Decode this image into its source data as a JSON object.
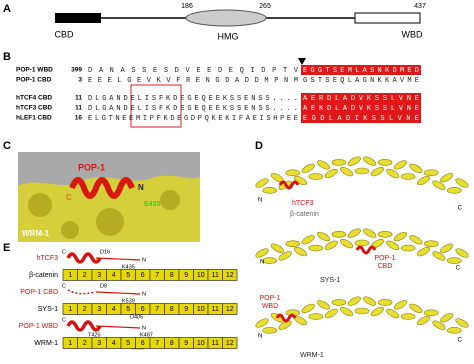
{
  "panel_a": {
    "label": "A",
    "positions": [
      186,
      265,
      437
    ],
    "domains": [
      "CBD",
      "HMG",
      "WBD"
    ]
  },
  "panel_b": {
    "label": "B",
    "rows": [
      {
        "name": "POP-1 WBD",
        "start": 399,
        "sequence": "DANASSESDVEEDEQIDPTV",
        "boxed": "EGGTSEMLASNKDMED",
        "highlight": true
      },
      {
        "name": "POP-1 CBD",
        "start": 3,
        "sequence": "EEELGEVKVFRENGDADDMPNM",
        "boxed": "GSTSEQLAGNKKAVME",
        "highlight": false
      },
      {
        "name": "hTCF4 CBD",
        "start": 11,
        "sequence": "DLGANDELISFKDEGEQEEKSSENSS....",
        "boxed": "AERDLADVKSSLVNE",
        "highlight": true
      },
      {
        "name": "hTCF3 CBD",
        "start": 11,
        "sequence": "DLGANDELISFKDEGEQEEKSSENSS....",
        "boxed": "AEKDLADVKSSLVNE",
        "highlight": true
      },
      {
        "name": "hLEF1 CBD",
        "start": 16,
        "sequence": "ELGTNEEMIPFKDEGDPQKEKIFAEISHPEE",
        "boxed": "EGDLADIKSSLVNE",
        "highlight": true
      }
    ]
  },
  "panel_c": {
    "label": "C",
    "ligand": "POP-1",
    "c_term": "C",
    "n_term": "N",
    "residue": "E435",
    "protein": "WRM-1"
  },
  "panel_d": {
    "label": "D",
    "structures": [
      {
        "n_term": "N",
        "c_term": "C",
        "partner_lines": [
          "hTCF3"
        ],
        "protein": "β-catenin"
      },
      {
        "n_term": "N",
        "c_term": "C",
        "partner_lines": [
          "POP-1",
          "CBD"
        ],
        "protein": "SYS-1"
      },
      {
        "n_term": "N",
        "c_term": "C",
        "partner_lines": [
          "POP-1",
          "WBD"
        ],
        "protein": "WRM-1"
      }
    ]
  },
  "panel_e": {
    "label": "E",
    "repeats": [
      1,
      2,
      3,
      4,
      5,
      6,
      7,
      8,
      9,
      10,
      11,
      12
    ],
    "rows": [
      {
        "ligand": "hTCF3",
        "protein": "β-catenin",
        "c_term": "C",
        "n_term": "N",
        "residues": [
          "D16",
          "K435"
        ]
      },
      {
        "ligand": "POP-1 CBD",
        "protein": "SYS-1",
        "c_term": "C",
        "n_term": "N",
        "residues": [
          "D8",
          "K539"
        ]
      },
      {
        "ligand": "POP-1 WBD",
        "protein": "WRM-1",
        "c_term": "C",
        "n_term": "N",
        "residues": [
          "D405",
          "T425",
          "K487"
        ]
      }
    ]
  }
}
